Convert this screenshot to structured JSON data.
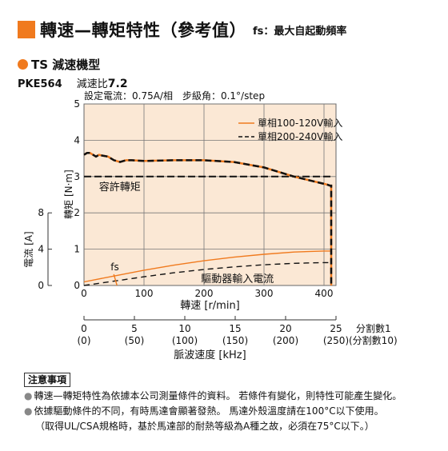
{
  "header": {
    "title": "轉速—轉矩特性（參考值）",
    "fs_note": "fs：最大自起動頻率",
    "accent_color": "#f07a1e"
  },
  "model": {
    "series": "TS 減速機型",
    "code": "PKE564",
    "ratio_label": "減速比",
    "ratio_value": "7.2"
  },
  "chart_data": {
    "type": "line",
    "conditions": "設定電流：0.75A/相　步級角：0.1°/step",
    "xlabel": "轉速 [r/min]",
    "ylabel_torque": "轉矩 [N·m]",
    "ylabel_current": "電流 [A]",
    "xlim": [
      0,
      420
    ],
    "x_ticks": [
      0,
      100,
      200,
      300,
      400
    ],
    "torque_ylim": [
      0,
      5
    ],
    "torque_ticks": [
      0,
      1,
      2,
      3,
      4,
      5
    ],
    "current_ticks": [
      0,
      4,
      8
    ],
    "grid": true,
    "plot_bg": "#fbe8d5",
    "legend": {
      "position": "top-right",
      "entries": [
        {
          "label": "單相100-120V輸入",
          "style": "solid",
          "color": "#f07a1e"
        },
        {
          "label": "單相200-240V輸入",
          "style": "dashed",
          "color": "#111111"
        }
      ]
    },
    "series": [
      {
        "name": "單相100-120V輸入",
        "color": "#f07a1e",
        "dash": false,
        "torque": {
          "x": [
            0,
            5,
            10,
            15,
            20,
            25,
            30,
            40,
            50,
            60,
            70,
            80,
            100,
            150,
            200,
            250,
            300,
            350,
            400,
            405,
            410,
            412,
            412
          ],
          "y": [
            3.6,
            3.65,
            3.65,
            3.6,
            3.55,
            3.6,
            3.58,
            3.55,
            3.45,
            3.4,
            3.45,
            3.45,
            3.43,
            3.45,
            3.45,
            3.4,
            3.25,
            3.0,
            2.8,
            2.78,
            2.75,
            2.75,
            0
          ]
        },
        "current": {
          "x": [
            0,
            50,
            100,
            150,
            200,
            250,
            300,
            350,
            400,
            412
          ],
          "y": [
            0.1,
            0.26,
            0.42,
            0.56,
            0.68,
            0.78,
            0.86,
            0.92,
            0.95,
            0.95
          ]
        }
      },
      {
        "name": "單相200-240V輸入",
        "color": "#111111",
        "dash": true,
        "torque": {
          "x": [
            0,
            5,
            10,
            15,
            20,
            25,
            30,
            40,
            50,
            60,
            70,
            80,
            100,
            150,
            200,
            250,
            300,
            350,
            400,
            405,
            410,
            412,
            412
          ],
          "y": [
            3.6,
            3.65,
            3.65,
            3.6,
            3.55,
            3.6,
            3.58,
            3.55,
            3.45,
            3.4,
            3.45,
            3.45,
            3.43,
            3.45,
            3.45,
            3.4,
            3.25,
            3.0,
            2.8,
            2.78,
            2.75,
            2.75,
            0
          ]
        },
        "current": {
          "x": [
            0,
            50,
            100,
            150,
            200,
            250,
            300,
            350,
            400,
            412
          ],
          "y": [
            0.0,
            0.12,
            0.24,
            0.35,
            0.44,
            0.51,
            0.57,
            0.61,
            0.63,
            0.63
          ]
        }
      }
    ],
    "pullout_label": "容許轉矩",
    "pullout_torque": 3.0,
    "pullout_x_end": 412,
    "fs_label": "fs",
    "fs_x": 55,
    "driver_current_label": "驅動器輸入電流",
    "freq_axis": {
      "label": "脈波速度 [kHz]",
      "unit_full": "分割數1",
      "unit_tenth": "(分割數10)",
      "ticks": [
        0,
        5,
        10,
        15,
        20,
        25
      ],
      "ticks_tenth": [
        "(0)",
        "(50)",
        "(100)",
        "(150)",
        "(200)",
        "(250)"
      ],
      "max_rpm_per_khz": 16.8
    }
  },
  "notes": {
    "heading": "注意事項",
    "lines": [
      "轉速—轉矩特性為依據本公司測量條件的資料。 若條件有變化，則特性可能產生變化。",
      "依據驅動條件的不同，有時馬達會顯著發熱。 馬達外殼溫度請在100°C以下使用。",
      "（取得UL/CSA規格時，基於馬達部的耐熱等級為A種之故，必須在75°C以下。）"
    ]
  }
}
